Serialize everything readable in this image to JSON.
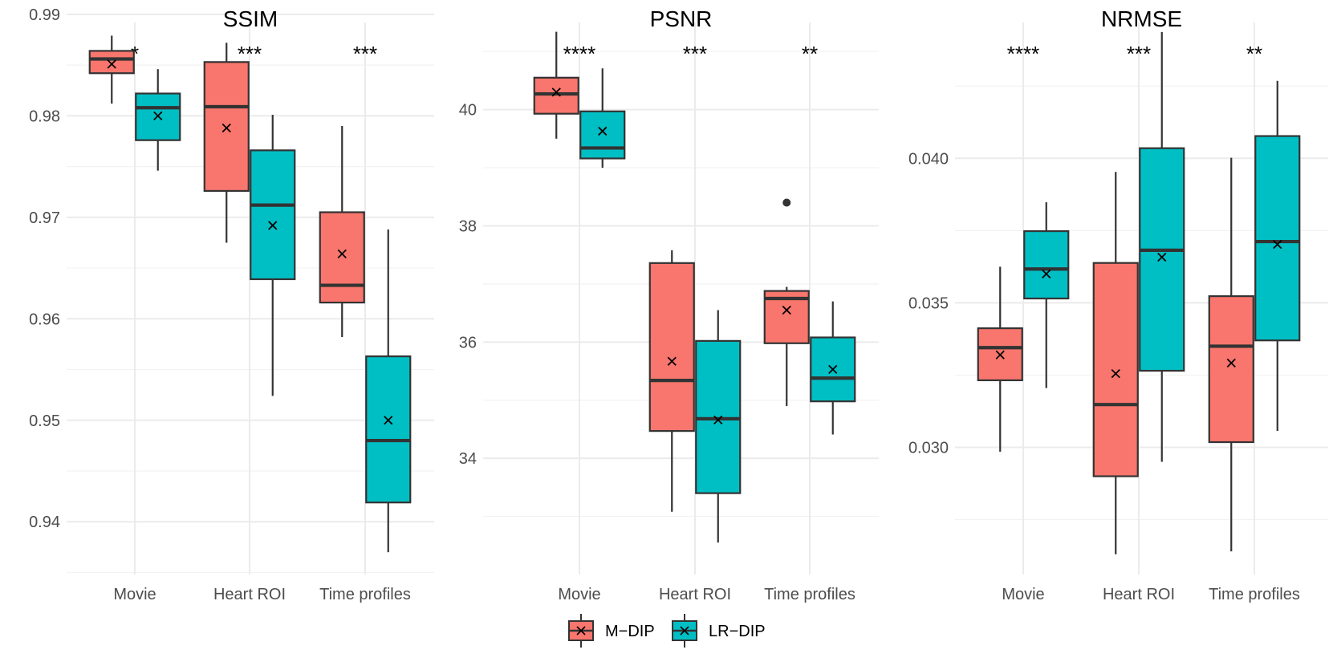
{
  "chart_data": {
    "type": "box",
    "legend": {
      "position": "bottom",
      "entries": [
        {
          "name": "M−DIP",
          "color": "#F8766D"
        },
        {
          "name": "LR−DIP",
          "color": "#00BFC4"
        }
      ]
    },
    "mean_marker": "×",
    "panels": [
      {
        "title": "SSIM",
        "categories": [
          "Movie",
          "Heart ROI",
          "Time profiles"
        ],
        "ylim": [
          0.9348,
          0.9892
        ],
        "yticks": [
          0.94,
          0.95,
          0.96,
          0.97,
          0.98,
          0.99
        ],
        "yticklabels": [
          "0.94",
          "0.95",
          "0.96",
          "0.97",
          "0.98",
          "0.99"
        ],
        "significance": [
          "*",
          "***",
          "***"
        ],
        "series": [
          {
            "name": "M−DIP",
            "boxes": [
              {
                "whisker_low": 0.9812,
                "q1": 0.9842,
                "median": 0.9856,
                "q3": 0.9864,
                "whisker_high": 0.9879,
                "mean": 0.9851,
                "outliers": []
              },
              {
                "whisker_low": 0.9675,
                "q1": 0.9726,
                "median": 0.9809,
                "q3": 0.9853,
                "whisker_high": 0.9872,
                "mean": 0.9788,
                "outliers": []
              },
              {
                "whisker_low": 0.9582,
                "q1": 0.9616,
                "median": 0.9633,
                "q3": 0.9705,
                "whisker_high": 0.979,
                "mean": 0.9664,
                "outliers": []
              }
            ]
          },
          {
            "name": "LR−DIP",
            "boxes": [
              {
                "whisker_low": 0.9746,
                "q1": 0.9776,
                "median": 0.9808,
                "q3": 0.9822,
                "whisker_high": 0.9846,
                "mean": 0.98,
                "outliers": []
              },
              {
                "whisker_low": 0.9524,
                "q1": 0.9639,
                "median": 0.9712,
                "q3": 0.9766,
                "whisker_high": 0.9801,
                "mean": 0.9692,
                "outliers": []
              },
              {
                "whisker_low": 0.937,
                "q1": 0.9419,
                "median": 0.948,
                "q3": 0.9563,
                "whisker_high": 0.9688,
                "mean": 0.95,
                "outliers": []
              }
            ]
          }
        ]
      },
      {
        "title": "PSNR",
        "categories": [
          "Movie",
          "Heart ROI",
          "Time profiles"
        ],
        "ylim": [
          32.0,
          41.5
        ],
        "yticks": [
          34,
          36,
          38,
          40
        ],
        "yticklabels": [
          "34",
          "36",
          "38",
          "40"
        ],
        "significance": [
          "****",
          "***",
          "**"
        ],
        "series": [
          {
            "name": "M−DIP",
            "boxes": [
              {
                "whisker_low": 39.5,
                "q1": 39.93,
                "median": 40.27,
                "q3": 40.55,
                "whisker_high": 41.34,
                "mean": 40.3,
                "outliers": []
              },
              {
                "whisker_low": 33.08,
                "q1": 34.47,
                "median": 35.34,
                "q3": 37.36,
                "whisker_high": 37.58,
                "mean": 35.67,
                "outliers": []
              },
              {
                "whisker_low": 34.9,
                "q1": 35.98,
                "median": 36.75,
                "q3": 36.88,
                "whisker_high": 36.95,
                "mean": 36.55,
                "outliers": [
                  38.4
                ]
              }
            ]
          },
          {
            "name": "LR−DIP",
            "boxes": [
              {
                "whisker_low": 39.0,
                "q1": 39.16,
                "median": 39.34,
                "q3": 39.97,
                "whisker_high": 40.71,
                "mean": 39.63,
                "outliers": []
              },
              {
                "whisker_low": 32.55,
                "q1": 33.4,
                "median": 34.68,
                "q3": 36.02,
                "whisker_high": 36.55,
                "mean": 34.66,
                "outliers": []
              },
              {
                "whisker_low": 34.41,
                "q1": 34.98,
                "median": 35.38,
                "q3": 36.08,
                "whisker_high": 36.7,
                "mean": 35.53,
                "outliers": []
              }
            ]
          }
        ]
      },
      {
        "title": "NRMSE",
        "categories": [
          "Movie",
          "Heart ROI",
          "Time profiles"
        ],
        "ylim": [
          0.0256,
          0.0447
        ],
        "yticks": [
          0.03,
          0.035,
          0.04
        ],
        "yticklabels": [
          "0.030",
          "0.035",
          "0.040"
        ],
        "significance": [
          "****",
          "***",
          "**"
        ],
        "series": [
          {
            "name": "M−DIP",
            "boxes": [
              {
                "whisker_low": 0.02985,
                "q1": 0.03232,
                "median": 0.03345,
                "q3": 0.03412,
                "whisker_high": 0.03625,
                "mean": 0.0332,
                "outliers": []
              },
              {
                "whisker_low": 0.0263,
                "q1": 0.029,
                "median": 0.03148,
                "q3": 0.03638,
                "whisker_high": 0.03953,
                "mean": 0.03255,
                "outliers": []
              },
              {
                "whisker_low": 0.0264,
                "q1": 0.03018,
                "median": 0.0335,
                "q3": 0.03523,
                "whisker_high": 0.04002,
                "mean": 0.03292,
                "outliers": []
              }
            ]
          },
          {
            "name": "LR−DIP",
            "boxes": [
              {
                "whisker_low": 0.03205,
                "q1": 0.03515,
                "median": 0.03617,
                "q3": 0.03748,
                "whisker_high": 0.03848,
                "mean": 0.036,
                "outliers": []
              },
              {
                "whisker_low": 0.0295,
                "q1": 0.03265,
                "median": 0.03682,
                "q3": 0.04035,
                "whisker_high": 0.04437,
                "mean": 0.03658,
                "outliers": []
              },
              {
                "whisker_low": 0.03057,
                "q1": 0.0337,
                "median": 0.03712,
                "q3": 0.04077,
                "whisker_high": 0.04268,
                "mean": 0.03702,
                "outliers": []
              }
            ]
          }
        ]
      }
    ]
  }
}
